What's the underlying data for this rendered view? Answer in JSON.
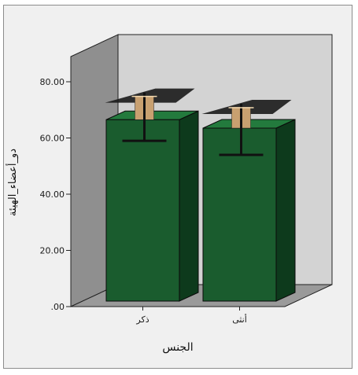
{
  "chart_data": {
    "type": "bar",
    "style": "3d",
    "categories": [
      "ذكر",
      "أنثى"
    ],
    "series": [
      {
        "values": [
          66.5,
          63.5
        ]
      }
    ],
    "error_bars": [
      {
        "lower": 59.0,
        "upper": 74.5
      },
      {
        "lower": 54.0,
        "upper": 70.5
      }
    ],
    "title": "",
    "xlabel": "الجنس",
    "ylabel": "دو_أعضاء_الهيئة",
    "ylim": [
      0,
      80
    ],
    "yticks": [
      ".00",
      "20.00",
      "40.00",
      "60.00",
      "80.00"
    ],
    "ytick_values": [
      0,
      20,
      40,
      60,
      80
    ],
    "grid": false,
    "colors": {
      "bar_front": "#1a5c2e",
      "bar_side": "#0d3a1c",
      "bar_top": "#237a3d",
      "back_wall": "#d3d3d3",
      "side_wall": "#8f8f8f",
      "floor": "#9a9a9a",
      "error_bar": "#111111",
      "cap_fill": "#c8a070"
    }
  }
}
